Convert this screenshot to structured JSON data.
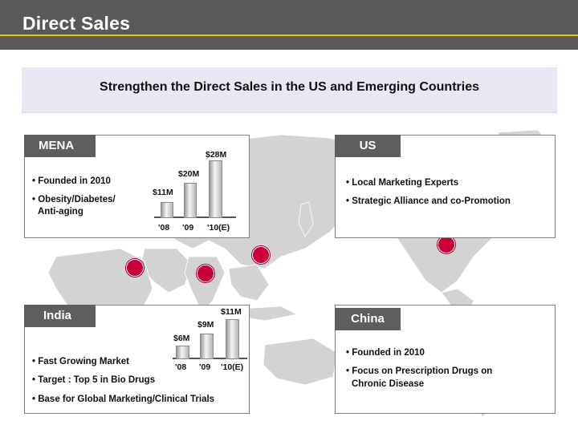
{
  "slide": {
    "title": "Direct Sales",
    "banner": "Strengthen the Direct Sales in the US and Emerging Countries"
  },
  "mena": {
    "tab": "MENA",
    "bullets": [
      "• Founded in 2010",
      "• Obesity/Diabetes/",
      "Anti-aging"
    ],
    "chart": {
      "type": "bar",
      "categories": [
        "'08",
        "'09",
        "'10(E)"
      ],
      "values": [
        11,
        20,
        28
      ],
      "value_labels": [
        "$11M",
        "$20M",
        "$28M"
      ]
    }
  },
  "us": {
    "tab": "US",
    "bullets": [
      "• Local Marketing Experts",
      "• Strategic Alliance and co-Promotion"
    ]
  },
  "india": {
    "tab": "India",
    "bullets": [
      "• Fast Growing Market",
      "• Target : Top 5 in Bio Drugs",
      "• Base for Global Marketing/Clinical Trials"
    ],
    "chart": {
      "type": "bar",
      "categories": [
        "'08",
        "'09",
        "'10(E)"
      ],
      "values": [
        6,
        9,
        11
      ],
      "value_labels": [
        "$6M",
        "$9M",
        "$11M"
      ]
    }
  },
  "china": {
    "tab": "China",
    "bullets": [
      "• Founded in 2010",
      "• Focus on Prescription Drugs on",
      "Chronic Disease"
    ]
  },
  "colors": {
    "title_bar": "#595959",
    "accent_rule": "#f2c200",
    "banner_bg": "#e8e8f2",
    "tab_bg": "#5e5e5e",
    "logo_red": "#c7003a",
    "map_land": "#d3d3d3"
  },
  "icons": [
    "lg-logo-icon",
    "world-map-icon"
  ]
}
